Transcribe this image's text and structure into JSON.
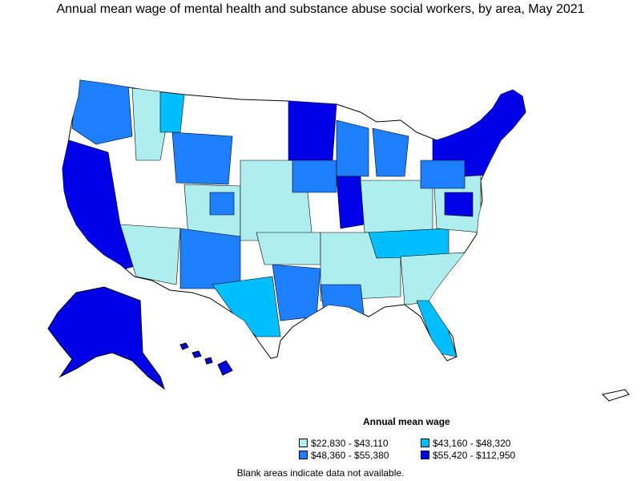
{
  "title": "Annual mean wage of mental health and substance abuse social workers, by area, May 2021",
  "legend": {
    "title": "Annual mean wage",
    "items": [
      {
        "label": "$22,830 - $43,110",
        "color": "#aeeeee"
      },
      {
        "label": "$43,160 - $48,320",
        "color": "#00bfff"
      },
      {
        "label": "$48,360 - $55,380",
        "color": "#1e7fff"
      },
      {
        "label": "$55,420 - $112,950",
        "color": "#0000e6"
      }
    ]
  },
  "footnote": "Blank areas indicate data not available.",
  "colors": {
    "no_data": "#ffffff",
    "outline": "#000000"
  }
}
